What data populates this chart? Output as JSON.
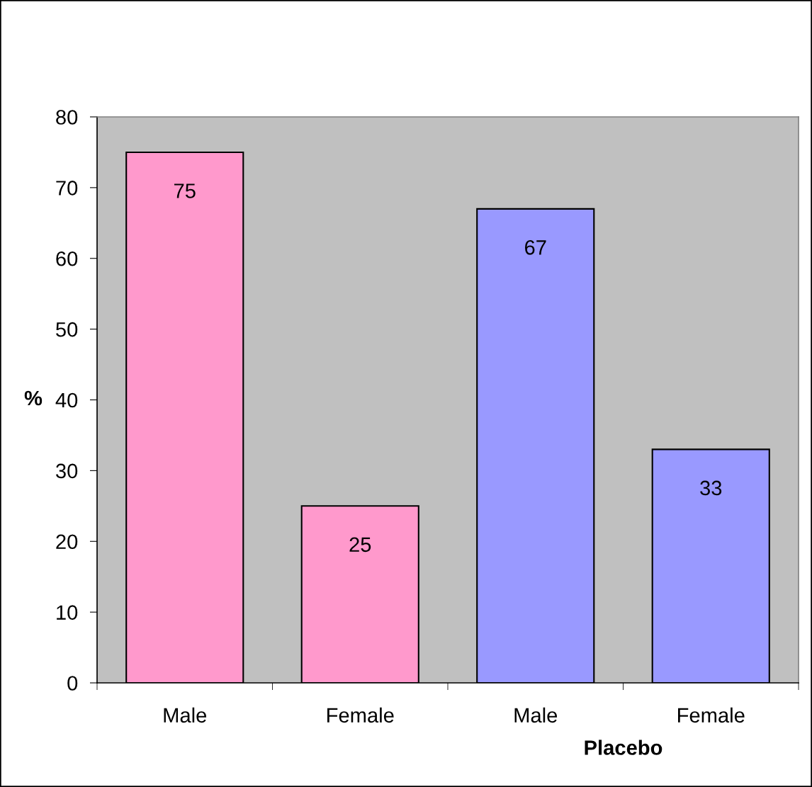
{
  "chart_data": {
    "type": "bar",
    "ylabel": "%",
    "categories": [
      "Male",
      "Female",
      "Male",
      "Female"
    ],
    "series": [
      {
        "color": "#ff99cc",
        "values": [
          75,
          25,
          null,
          null
        ]
      },
      {
        "name": "Placebo",
        "color": "#9999ff",
        "values": [
          null,
          null,
          67,
          33
        ]
      }
    ],
    "ylim": [
      0,
      80
    ],
    "yticks": [
      0,
      10,
      20,
      30,
      40,
      50,
      60,
      70,
      80
    ],
    "data_labels": true,
    "legend": false,
    "grid": false
  }
}
